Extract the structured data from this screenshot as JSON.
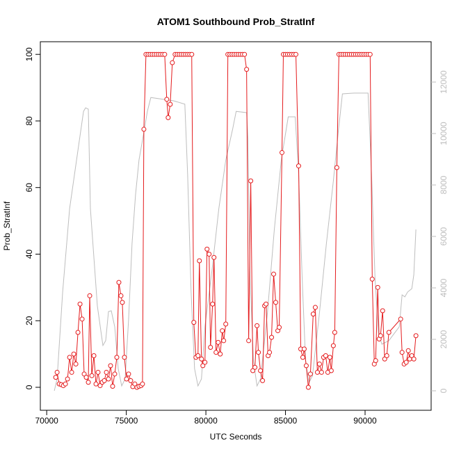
{
  "chart_data": {
    "type": "line",
    "title": "ATOM1 Southbound Prob_StratInf",
    "xlabel": "UTC Seconds",
    "ylabel": "Prob_StratInf",
    "xlim": [
      69600,
      94150
    ],
    "xticks": [
      70000,
      75000,
      80000,
      85000,
      90000
    ],
    "ylim": [
      -6.9,
      103.8
    ],
    "yticks": [
      0,
      20,
      40,
      60,
      80,
      100
    ],
    "y2lim": [
      -757,
      13568
    ],
    "y2ticks": [
      0,
      2000,
      4000,
      6000,
      8000,
      10000,
      12000
    ],
    "series": [
      {
        "color": "#e41a1c",
        "marker": "circle",
        "x": [
          70567,
          70654,
          70785,
          70916,
          71046,
          71177,
          71308,
          71439,
          71570,
          71700,
          71831,
          71962,
          72093,
          72224,
          72354,
          72485,
          72616,
          72703,
          72834,
          72965,
          73096,
          73226,
          73357,
          73488,
          73619,
          73750,
          73880,
          74011,
          74142,
          74273,
          74404,
          74534,
          74665,
          74752,
          74883,
          75014,
          75145,
          75276,
          75406,
          75537,
          75668,
          75799,
          75930,
          76017,
          76104,
          76235,
          76366,
          76496,
          76627,
          76758,
          76889,
          77020,
          77150,
          77281,
          77412,
          77543,
          77630,
          77761,
          77892,
          78066,
          78197,
          78328,
          78458,
          78589,
          78720,
          78851,
          78982,
          79112,
          79243,
          79374,
          79505,
          79592,
          79723,
          79810,
          79941,
          80072,
          80202,
          80290,
          80420,
          80508,
          80638,
          80769,
          80900,
          81031,
          81118,
          81249,
          81380,
          81510,
          81641,
          81772,
          81903,
          82034,
          82164,
          82295,
          82426,
          82557,
          82688,
          82818,
          82949,
          83080,
          83211,
          83298,
          83429,
          83560,
          83690,
          83778,
          83908,
          83996,
          84126,
          84257,
          84388,
          84519,
          84606,
          84780,
          84868,
          84998,
          85129,
          85260,
          85391,
          85522,
          85652,
          85827,
          85958,
          86088,
          86176,
          86306,
          86437,
          86568,
          86742,
          86873,
          87004,
          87135,
          87266,
          87396,
          87527,
          87658,
          87789,
          87876,
          88007,
          88094,
          88225,
          88356,
          88486,
          88617,
          88748,
          88879,
          89010,
          89140,
          89271,
          89402,
          89533,
          89664,
          89794,
          89925,
          90056,
          90187,
          90318,
          90448,
          90579,
          90666,
          90797,
          90884,
          90972,
          91102,
          91233,
          91364,
          91495,
          92236,
          92323,
          92454,
          92585,
          92716,
          92803,
          92934,
          93064,
          93195
        ],
        "values": [
          3,
          4.5,
          1,
          0.8,
          0.5,
          1,
          2.5,
          9,
          4.5,
          10,
          7,
          16.5,
          25,
          20.5,
          4,
          3,
          1.5,
          27.5,
          3.5,
          9.5,
          1,
          4.5,
          0.5,
          1.5,
          2,
          4.5,
          2.5,
          6.5,
          0.3,
          4,
          9,
          31.5,
          27.5,
          25.5,
          9,
          2.5,
          4,
          2,
          0.2,
          1,
          0,
          0.3,
          0.5,
          1,
          77.5,
          100,
          100,
          100,
          100,
          100,
          100,
          100,
          100,
          100,
          100,
          86.5,
          81,
          85,
          97.5,
          100,
          100,
          100,
          100,
          100,
          100,
          100,
          100,
          100,
          19.5,
          9,
          9.5,
          38,
          8.5,
          6.5,
          7.5,
          41.5,
          40,
          12,
          25,
          39,
          10.5,
          13.5,
          10,
          17,
          14,
          19,
          100,
          100,
          100,
          100,
          100,
          100,
          100,
          100,
          100,
          95.5,
          14,
          62,
          5,
          6,
          18.5,
          10.5,
          5,
          2,
          24.5,
          25,
          9.5,
          10.5,
          15,
          34,
          25.5,
          17,
          18,
          70.5,
          100,
          100,
          100,
          100,
          100,
          100,
          100,
          66.5,
          11.5,
          9,
          11.5,
          6.5,
          0,
          4,
          22,
          24,
          4.5,
          7,
          4.5,
          9,
          9.5,
          4.5,
          9,
          5,
          12.5,
          16.5,
          66,
          100,
          100,
          100,
          100,
          100,
          100,
          100,
          100,
          100,
          100,
          100,
          100,
          100,
          100,
          100,
          100,
          32.5,
          7,
          8,
          30,
          14.5,
          15.5,
          23,
          8.5,
          9.5,
          16.5,
          20.5,
          10.5,
          7,
          7.5,
          11,
          8.5,
          9.5,
          8.5,
          15.5
        ]
      },
      {
        "color": "#bdbdbd",
        "axis": "y2",
        "x": [
          70480,
          70654,
          71003,
          71439,
          71875,
          72311,
          72442,
          72616,
          72747,
          73183,
          73532,
          73706,
          73880,
          74055,
          74273,
          74491,
          74709,
          74927,
          75145,
          75363,
          75581,
          75799,
          76104,
          76322,
          76540,
          77107,
          77979,
          78676,
          78851,
          79069,
          79287,
          79505,
          79723,
          79941,
          80377,
          80813,
          81249,
          81685,
          81903,
          82557,
          82644,
          82775,
          82993,
          83211,
          83429,
          83865,
          84301,
          84737,
          85173,
          85609,
          85827,
          86045,
          86263,
          86481,
          86699,
          87135,
          87571,
          88007,
          88312,
          88574,
          89315,
          90187,
          90405,
          90623,
          90841,
          91059,
          91495,
          92149,
          92323,
          92498,
          92672,
          92934,
          93064,
          93195
        ],
        "values": [
          0,
          460,
          3840,
          7080,
          8970,
          10860,
          11000,
          10950,
          7080,
          3300,
          1760,
          1950,
          3080,
          3110,
          2490,
          860,
          190,
          460,
          2760,
          5730,
          7620,
          8970,
          10050,
          10860,
          11400,
          11350,
          11270,
          11140,
          8430,
          3850,
          860,
          190,
          460,
          2490,
          4650,
          7080,
          8970,
          10190,
          10860,
          10810,
          9800,
          4380,
          1135,
          190,
          460,
          3030,
          6270,
          8970,
          10650,
          10650,
          8430,
          4380,
          1135,
          320,
          590,
          3030,
          5730,
          8160,
          10050,
          11540,
          11570,
          11570,
          8430,
          4380,
          2220,
          1810,
          1950,
          2490,
          3730,
          3650,
          3840,
          3970,
          4510,
          6270
        ]
      }
    ]
  }
}
